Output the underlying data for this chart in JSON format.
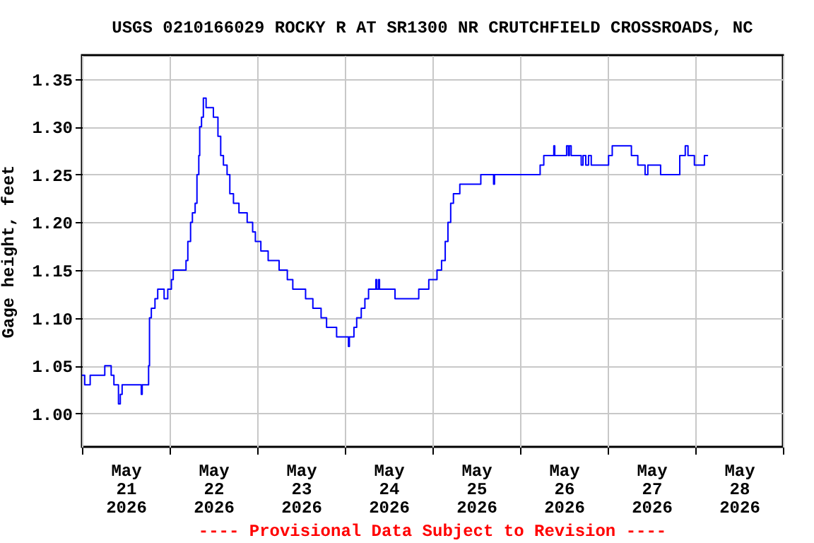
{
  "chart_data": {
    "type": "step",
    "title": "USGS 0210166029 ROCKY R AT SR1300 NR CRUTCHFIELD CROSSROADS, NC",
    "ylabel": "Gage height, feet",
    "annotations": [
      "---- Provisional Data Subject to Revision ----"
    ],
    "grid": true,
    "line_style": "solid",
    "marker": "none",
    "xlim": [
      "2026-05-21T00:00",
      "2026-05-29T00:00"
    ],
    "xticks": [
      {
        "value": "2026-05-21T00:00",
        "label": null
      },
      {
        "value": "2026-05-21T12:00",
        "label": "May 21 2026"
      },
      {
        "value": "2026-05-22T00:00",
        "label": null
      },
      {
        "value": "2026-05-22T12:00",
        "label": "May 22 2026"
      },
      {
        "value": "2026-05-23T00:00",
        "label": null
      },
      {
        "value": "2026-05-23T12:00",
        "label": "May 23 2026"
      },
      {
        "value": "2026-05-24T00:00",
        "label": null
      },
      {
        "value": "2026-05-24T12:00",
        "label": "May 24 2026"
      },
      {
        "value": "2026-05-25T00:00",
        "label": null
      },
      {
        "value": "2026-05-25T12:00",
        "label": "May 25 2026"
      },
      {
        "value": "2026-05-26T00:00",
        "label": null
      },
      {
        "value": "2026-05-26T12:00",
        "label": "May 26 2026"
      },
      {
        "value": "2026-05-27T00:00",
        "label": null
      },
      {
        "value": "2026-05-27T12:00",
        "label": "May 27 2026"
      },
      {
        "value": "2026-05-28T00:00",
        "label": null
      },
      {
        "value": "2026-05-28T12:00",
        "label": "May 28 2026"
      },
      {
        "value": "2026-05-29T00:00",
        "label": null
      }
    ],
    "ylim": [
      0.965,
      1.375
    ],
    "yticks": [
      {
        "value": 1.0,
        "label": "1.00"
      },
      {
        "value": 1.05,
        "label": "1.05"
      },
      {
        "value": 1.1,
        "label": "1.10"
      },
      {
        "value": 1.15,
        "label": "1.15"
      },
      {
        "value": 1.2,
        "label": "1.20"
      },
      {
        "value": 1.25,
        "label": "1.25"
      },
      {
        "value": 1.3,
        "label": "1.30"
      },
      {
        "value": 1.35,
        "label": "1.35"
      }
    ],
    "series": [
      {
        "color": "#0000ff",
        "x": [
          "2026-05-21T00:00",
          "2026-05-21T00:45",
          "2026-05-21T02:15",
          "2026-05-21T06:15",
          "2026-05-21T08:00",
          "2026-05-21T08:45",
          "2026-05-21T10:00",
          "2026-05-21T10:30",
          "2026-05-21T11:00",
          "2026-05-21T16:15",
          "2026-05-21T16:30",
          "2026-05-21T18:15",
          "2026-05-21T18:30",
          "2026-05-21T19:00",
          "2026-05-21T20:00",
          "2026-05-21T20:45",
          "2026-05-21T22:30",
          "2026-05-21T23:30",
          "2026-05-22T00:30",
          "2026-05-22T01:00",
          "2026-05-22T04:30",
          "2026-05-22T05:00",
          "2026-05-22T05:45",
          "2026-05-22T06:15",
          "2026-05-22T07:00",
          "2026-05-22T07:30",
          "2026-05-22T08:00",
          "2026-05-22T08:15",
          "2026-05-22T08:45",
          "2026-05-22T09:15",
          "2026-05-22T10:00",
          "2026-05-22T12:00",
          "2026-05-22T13:15",
          "2026-05-22T14:00",
          "2026-05-22T14:45",
          "2026-05-22T15:45",
          "2026-05-22T16:30",
          "2026-05-22T17:30",
          "2026-05-22T19:00",
          "2026-05-22T21:15",
          "2026-05-22T22:45",
          "2026-05-22T23:30",
          "2026-05-23T01:00",
          "2026-05-23T03:00",
          "2026-05-23T06:00",
          "2026-05-23T08:15",
          "2026-05-23T09:45",
          "2026-05-23T13:15",
          "2026-05-23T15:15",
          "2026-05-23T17:30",
          "2026-05-23T19:00",
          "2026-05-23T21:45",
          "2026-05-24T01:00",
          "2026-05-24T01:15",
          "2026-05-24T02:30",
          "2026-05-24T03:15",
          "2026-05-24T04:30",
          "2026-05-24T05:30",
          "2026-05-24T06:30",
          "2026-05-24T08:30",
          "2026-05-24T08:45",
          "2026-05-24T09:15",
          "2026-05-24T09:30",
          "2026-05-24T13:45",
          "2026-05-24T20:15",
          "2026-05-24T23:00",
          "2026-05-25T01:15",
          "2026-05-25T02:30",
          "2026-05-25T03:30",
          "2026-05-25T04:15",
          "2026-05-25T05:00",
          "2026-05-25T05:45",
          "2026-05-25T07:30",
          "2026-05-25T13:15",
          "2026-05-25T16:45",
          "2026-05-25T17:00",
          "2026-05-26T05:30",
          "2026-05-26T06:30",
          "2026-05-26T09:15",
          "2026-05-26T09:30",
          "2026-05-26T12:45",
          "2026-05-26T13:15",
          "2026-05-26T13:30",
          "2026-05-26T14:00",
          "2026-05-26T16:45",
          "2026-05-26T17:15",
          "2026-05-26T18:00",
          "2026-05-26T18:45",
          "2026-05-26T19:30",
          "2026-05-27T00:15",
          "2026-05-27T01:15",
          "2026-05-27T06:30",
          "2026-05-27T08:15",
          "2026-05-27T10:15",
          "2026-05-27T11:00",
          "2026-05-27T14:30",
          "2026-05-27T19:45",
          "2026-05-27T21:15",
          "2026-05-27T22:00",
          "2026-05-27T23:45",
          "2026-05-28T02:30",
          "2026-05-28T03:30"
        ],
        "values": [
          1.04,
          1.03,
          1.04,
          1.05,
          1.04,
          1.03,
          1.01,
          1.02,
          1.03,
          1.02,
          1.03,
          1.05,
          1.1,
          1.11,
          1.12,
          1.13,
          1.12,
          1.13,
          1.14,
          1.15,
          1.16,
          1.18,
          1.2,
          1.21,
          1.22,
          1.25,
          1.27,
          1.3,
          1.31,
          1.33,
          1.32,
          1.31,
          1.29,
          1.27,
          1.26,
          1.25,
          1.23,
          1.22,
          1.21,
          1.2,
          1.19,
          1.18,
          1.17,
          1.16,
          1.15,
          1.14,
          1.13,
          1.12,
          1.11,
          1.1,
          1.09,
          1.08,
          1.07,
          1.08,
          1.09,
          1.1,
          1.11,
          1.12,
          1.13,
          1.14,
          1.13,
          1.14,
          1.13,
          1.12,
          1.13,
          1.14,
          1.15,
          1.16,
          1.18,
          1.2,
          1.22,
          1.23,
          1.24,
          1.25,
          1.24,
          1.25,
          1.26,
          1.27,
          1.28,
          1.27,
          1.28,
          1.27,
          1.28,
          1.27,
          1.26,
          1.27,
          1.26,
          1.27,
          1.26,
          1.27,
          1.28,
          1.27,
          1.26,
          1.25,
          1.26,
          1.25,
          1.27,
          1.28,
          1.27,
          1.26,
          1.27,
          1.27
        ]
      }
    ]
  }
}
